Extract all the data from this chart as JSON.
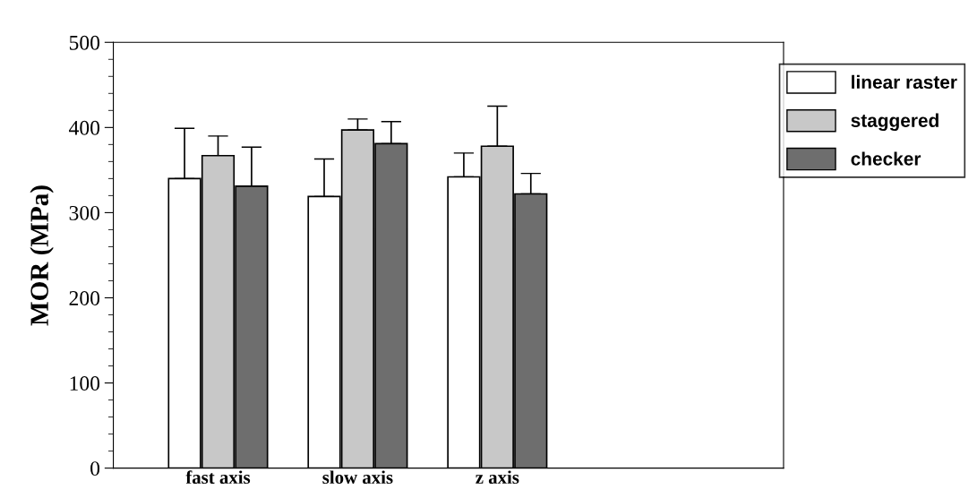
{
  "chart_data": {
    "type": "bar",
    "ylabel": "MOR (MPa)",
    "categories": [
      "fast axis",
      "slow axis",
      "z axis"
    ],
    "series": [
      {
        "name": "linear raster",
        "color": "#ffffff",
        "values": [
          340,
          319,
          342
        ],
        "errors": [
          [
            340,
            399
          ],
          [
            319,
            363
          ],
          [
            342,
            370
          ]
        ]
      },
      {
        "name": "staggered",
        "color": "#c8c8c8",
        "values": [
          367,
          397,
          378
        ],
        "errors": [
          [
            367,
            390
          ],
          [
            397,
            410
          ],
          [
            378,
            425
          ]
        ]
      },
      {
        "name": "checker",
        "color": "#6e6e6e",
        "values": [
          331,
          381,
          322
        ],
        "errors": [
          [
            331,
            377
          ],
          [
            381,
            407
          ],
          [
            322,
            346
          ]
        ]
      }
    ],
    "ylim": [
      0,
      500
    ],
    "yticks": [
      0,
      100,
      200,
      300,
      400,
      500
    ],
    "grid": false,
    "legend": "top right"
  }
}
